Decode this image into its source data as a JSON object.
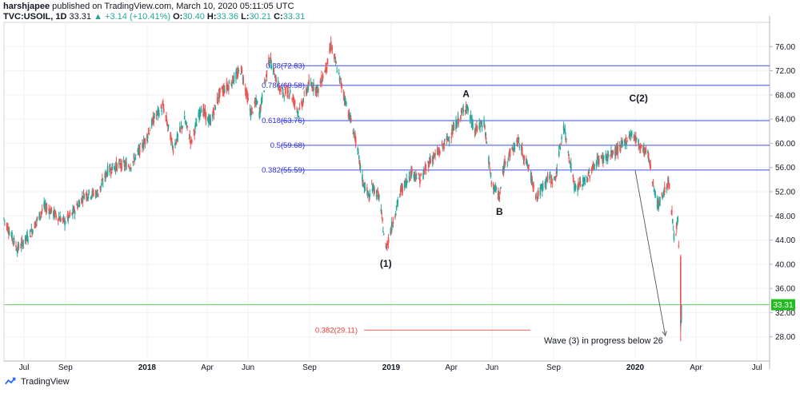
{
  "header": {
    "author": "harshjapee",
    "published_text": "published on TradingView.com, March 10, 2020 05:11:05 UTC",
    "symbol": "TVC:USOIL, 1D",
    "last": "33.31",
    "change": "+3.14 (+10.41%)",
    "o_label": "O:",
    "o_value": "30.40",
    "h_label": "H:",
    "h_value": "33.36",
    "l_label": "L:",
    "l_value": "30.21",
    "c_label": "C:",
    "c_value": "33.31"
  },
  "footer": {
    "brand": "TradingView"
  },
  "colors": {
    "up": "#26a69a",
    "down": "#ef5350",
    "fib_line": "#3d4ee0",
    "fib_text": "#2b2bdc",
    "target_line": "#f06060",
    "price_line": "#6dd46d",
    "price_badge": "#22bb22",
    "grid": "#eef0f3"
  },
  "chart_data": {
    "type": "candlestick",
    "y_ticks": [
      "76.00",
      "72.00",
      "68.00",
      "64.00",
      "60.00",
      "56.00",
      "52.00",
      "48.00",
      "44.00",
      "40.00",
      "36.00",
      "32.00",
      "28.00"
    ],
    "ylim": [
      26,
      78
    ],
    "x_ticks": [
      {
        "label": "Jul",
        "bold": false
      },
      {
        "label": "Sep",
        "bold": false
      },
      {
        "label": "2018",
        "bold": true
      },
      {
        "label": "Apr",
        "bold": false
      },
      {
        "label": "Jun",
        "bold": false
      },
      {
        "label": "Sep",
        "bold": false
      },
      {
        "label": "2019",
        "bold": true
      },
      {
        "label": "Apr",
        "bold": false
      },
      {
        "label": "Jun",
        "bold": false
      },
      {
        "label": "Sep",
        "bold": false
      },
      {
        "label": "2020",
        "bold": true
      },
      {
        "label": "Apr",
        "bold": false
      },
      {
        "label": "Jul",
        "bold": false
      }
    ],
    "x_tick_dates": [
      "2017-07-01",
      "2017-09-01",
      "2018-01-01",
      "2018-04-01",
      "2018-06-01",
      "2018-09-01",
      "2019-01-01",
      "2019-04-01",
      "2019-06-01",
      "2019-09-01",
      "2020-01-01",
      "2020-04-01",
      "2020-07-01"
    ],
    "x_range": [
      "2017-06-01",
      "2020-07-20"
    ],
    "price_path": [
      [
        "2017-06-01",
        47.5
      ],
      [
        "2017-06-21",
        42.5
      ],
      [
        "2017-07-10",
        45
      ],
      [
        "2017-07-31",
        49.5
      ],
      [
        "2017-08-08",
        49
      ],
      [
        "2017-08-31",
        47
      ],
      [
        "2017-09-12",
        48.5
      ],
      [
        "2017-09-29",
        51.5
      ],
      [
        "2017-10-20",
        51.8
      ],
      [
        "2017-11-03",
        55.5
      ],
      [
        "2017-11-20",
        56.5
      ],
      [
        "2017-12-07",
        56.3
      ],
      [
        "2017-12-29",
        60.4
      ],
      [
        "2018-01-12",
        64.3
      ],
      [
        "2018-01-25",
        66.1
      ],
      [
        "2018-02-09",
        59.2
      ],
      [
        "2018-02-26",
        63.9
      ],
      [
        "2018-03-08",
        60.2
      ],
      [
        "2018-03-23",
        65.9
      ],
      [
        "2018-04-05",
        63.4
      ],
      [
        "2018-04-20",
        68.4
      ],
      [
        "2018-05-04",
        69.7
      ],
      [
        "2018-05-22",
        72.2
      ],
      [
        "2018-06-05",
        65.0
      ],
      [
        "2018-06-14",
        66.9
      ],
      [
        "2018-06-18",
        65.0
      ],
      [
        "2018-07-03",
        74.1
      ],
      [
        "2018-07-20",
        68.3
      ],
      [
        "2018-08-03",
        68.5
      ],
      [
        "2018-08-16",
        65.0
      ],
      [
        "2018-08-31",
        69.8
      ],
      [
        "2018-09-14",
        68.9
      ],
      [
        "2018-09-28",
        73.3
      ],
      [
        "2018-10-03",
        76.3
      ],
      [
        "2018-10-20",
        69.0
      ],
      [
        "2018-11-08",
        61.0
      ],
      [
        "2018-11-20",
        53.5
      ],
      [
        "2018-11-30",
        50.9
      ],
      [
        "2018-12-03",
        53.0
      ],
      [
        "2018-12-14",
        51.2
      ],
      [
        "2018-12-24",
        42.5
      ],
      [
        "2018-12-31",
        45.4
      ],
      [
        "2019-01-15",
        52.0
      ],
      [
        "2019-02-01",
        55.3
      ],
      [
        "2019-02-14",
        54.0
      ],
      [
        "2019-02-28",
        57.2
      ],
      [
        "2019-03-14",
        58.6
      ],
      [
        "2019-04-01",
        61.6
      ],
      [
        "2019-04-23",
        66.3
      ],
      [
        "2019-05-06",
        62.0
      ],
      [
        "2019-05-20",
        63.5
      ],
      [
        "2019-05-31",
        53.5
      ],
      [
        "2019-06-12",
        51.1
      ],
      [
        "2019-06-20",
        57.0
      ],
      [
        "2019-07-10",
        60.4
      ],
      [
        "2019-07-25",
        56.0
      ],
      [
        "2019-08-07",
        51.1
      ],
      [
        "2019-08-23",
        54.2
      ],
      [
        "2019-09-03",
        53.9
      ],
      [
        "2019-09-16",
        62.9
      ],
      [
        "2019-10-03",
        52.5
      ],
      [
        "2019-10-20",
        54.0
      ],
      [
        "2019-11-05",
        57.2
      ],
      [
        "2019-11-25",
        58.0
      ],
      [
        "2019-12-10",
        59.3
      ],
      [
        "2019-12-27",
        61.7
      ],
      [
        "2020-01-08",
        59.6
      ],
      [
        "2020-01-20",
        58.3
      ],
      [
        "2020-01-31",
        51.6
      ],
      [
        "2020-02-04",
        49.6
      ],
      [
        "2020-02-20",
        53.8
      ],
      [
        "2020-02-28",
        44.8
      ],
      [
        "2020-03-05",
        46.8
      ],
      [
        "2020-03-09",
        30.2
      ],
      [
        "2020-03-10",
        33.3
      ]
    ],
    "last_candle": {
      "o": 30.4,
      "h": 33.36,
      "l": 30.21,
      "c": 33.31
    },
    "current_price_label": "33.31",
    "fib_levels": [
      {
        "label": "0.88(72.83)",
        "price": 72.83
      },
      {
        "label": "0.786(69.58)",
        "price": 69.58
      },
      {
        "label": "0.618(63.76)",
        "price": 63.76
      },
      {
        "label": "0.5(59.68)",
        "price": 59.68
      },
      {
        "label": "0.382(55.59)",
        "price": 55.59
      }
    ],
    "target_level": {
      "label": "0.382(29.11)",
      "price": 29.11
    },
    "wave_labels": [
      {
        "text": "(1)",
        "date": "2018-12-24",
        "price": 42.5,
        "pos": "below"
      },
      {
        "text": "A",
        "date": "2019-04-23",
        "price": 66.3,
        "pos": "above"
      },
      {
        "text": "B",
        "date": "2019-06-12",
        "price": 51.1,
        "pos": "below"
      },
      {
        "text": "C(2)",
        "date": "2020-01-06",
        "price": 65.6,
        "pos": "above"
      }
    ],
    "annotation": "Wave (3) in progress below 26",
    "arrow": {
      "from": [
        "2020-01-01",
        55.5
      ],
      "to": [
        "2020-02-15",
        28.2
      ]
    }
  }
}
